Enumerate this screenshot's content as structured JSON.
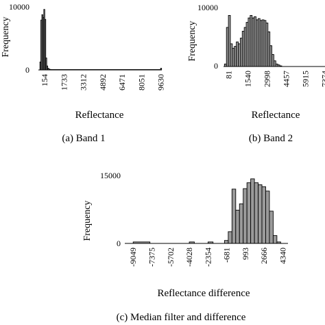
{
  "chart_data": [
    {
      "type": "bar",
      "caption": "(a) Band 1",
      "xlabel": "Reflectance",
      "ylabel": "Frequency",
      "y_tick_labels": [
        "0",
        "10000"
      ],
      "ylim": [
        0,
        10000
      ],
      "x_tick_labels": [
        "154",
        "1733",
        "3312",
        "4892",
        "6471",
        "8051",
        "9630"
      ],
      "xlim": [
        -360,
        9700
      ],
      "bin_width": 80,
      "x": [
        -240,
        -160,
        -80,
        0,
        80,
        160,
        240,
        320,
        400,
        480,
        560,
        640,
        720
      ],
      "values": [
        1200,
        7500,
        8300,
        7900,
        9100,
        7600,
        1800,
        600,
        250,
        120,
        80,
        60,
        50
      ],
      "baseline_bar": {
        "x": [
          720,
          9600
        ],
        "value": 60
      },
      "end_bar": {
        "x": 9600,
        "value": 250
      }
    },
    {
      "type": "bar",
      "caption": "(b) Band 2",
      "xlabel": "Reflectance",
      "ylabel": "Frequency",
      "y_tick_labels": [
        "0",
        "10000"
      ],
      "ylim": [
        0,
        10000
      ],
      "x_tick_labels": [
        "81",
        "1540",
        "2998",
        "4457",
        "5915",
        "7374"
      ],
      "xlim": [
        -300,
        7400
      ],
      "bin_width": 150,
      "x": [
        -230,
        -80,
        70,
        220,
        370,
        520,
        670,
        820,
        970,
        1120,
        1270,
        1420,
        1570,
        1720,
        1870,
        2020,
        2170,
        2320,
        2470,
        2620,
        2770,
        2920,
        3070,
        3220,
        3370,
        3520,
        3670,
        3820,
        3970
      ],
      "values": [
        400,
        6200,
        8100,
        3600,
        2900,
        3200,
        3900,
        3600,
        4500,
        5600,
        6200,
        7000,
        7700,
        8100,
        7700,
        7900,
        7400,
        7600,
        7300,
        7400,
        7300,
        6900,
        5500,
        3300,
        1900,
        900,
        400,
        250,
        100
      ]
    },
    {
      "type": "bar",
      "caption": "(c) Median filter and difference",
      "xlabel": "Reflectance difference",
      "ylabel": "Frequency",
      "y_tick_labels": [
        "0",
        "15000"
      ],
      "ylim": [
        0,
        15000
      ],
      "x_tick_labels": [
        "-9049",
        "-7375",
        "-5702",
        "-4028",
        "-2354",
        "-681",
        "993",
        "2666",
        "4340"
      ],
      "xlim": [
        -9800,
        4800
      ],
      "bin_width": 335,
      "x": [
        -880,
        -545,
        -210,
        125,
        460,
        795,
        1130,
        1465,
        1800,
        2135,
        2470,
        2805,
        3140,
        3475,
        3810
      ],
      "values": [
        600,
        2400,
        11100,
        6800,
        8100,
        11200,
        12400,
        13200,
        12400,
        12000,
        11600,
        10700,
        6600,
        1600,
        300
      ],
      "small_bars": {
        "x": [
          -9049,
          -4028,
          -2354
        ],
        "value": 300
      }
    }
  ]
}
